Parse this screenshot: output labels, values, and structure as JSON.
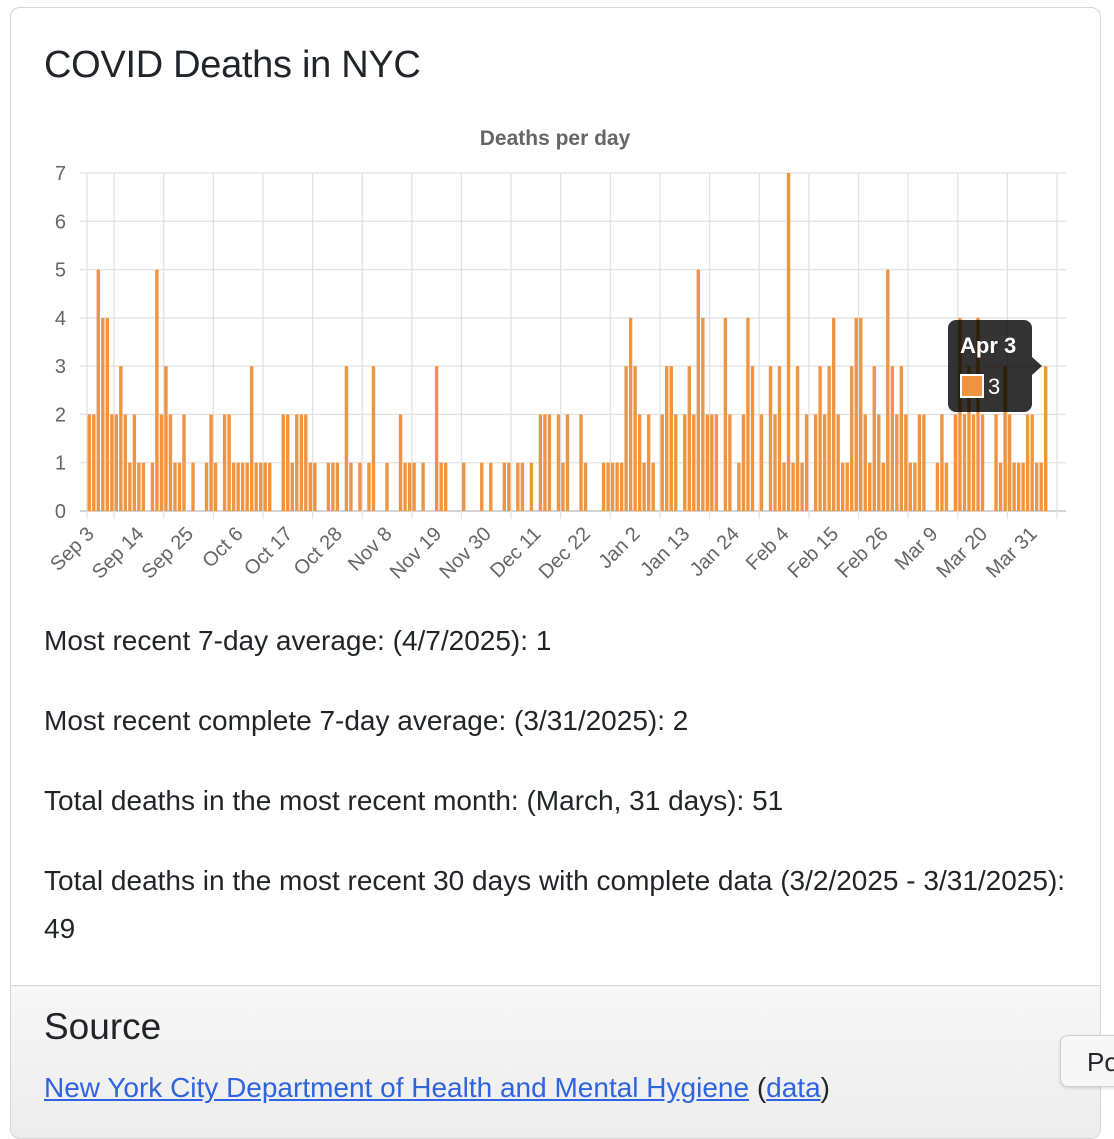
{
  "card": {
    "title": "COVID Deaths in NYC",
    "stats": [
      "Most recent 7-day average: (4/7/2025): 1",
      "Most recent complete 7-day average: (3/31/2025): 2",
      "Total deaths in the most recent month: (March, 31 days): 51",
      "Total deaths in the most recent 30 days with complete data (3/2/2025 - 3/31/2025): 49"
    ]
  },
  "source": {
    "heading": "Source",
    "link_label": "New York City Department of Health and Mental Hygiene",
    "open_paren": "(",
    "data_link_label": "data",
    "close_paren": ")"
  },
  "side_button": {
    "label": "Po"
  },
  "colors": {
    "bar": "#ef9440",
    "tooltip_bg": "#000000cc"
  },
  "chart_data": {
    "type": "bar",
    "title": "Deaths per day",
    "xlabel": "",
    "ylabel": "",
    "ylim": [
      0,
      7
    ],
    "yticks": [
      "0",
      "1",
      "2",
      "3",
      "4",
      "5",
      "6",
      "7"
    ],
    "grid": true,
    "legend": "none",
    "x_start": "Sep 3",
    "x_end": "Apr 7",
    "xtick_labels": [
      "Sep 3",
      "Sep 14",
      "Sep 25",
      "Oct 6",
      "Oct 17",
      "Oct 28",
      "Nov 8",
      "Nov 19",
      "Nov 30",
      "Dec 11",
      "Dec 22",
      "Jan 2",
      "Jan 13",
      "Jan 24",
      "Feb 4",
      "Feb 15",
      "Feb 26",
      "Mar 9",
      "Mar 20",
      "Mar 31"
    ],
    "xtick_every_days": 11,
    "values": [
      2,
      2,
      5,
      4,
      4,
      2,
      2,
      3,
      2,
      1,
      2,
      1,
      1,
      0,
      1,
      5,
      2,
      3,
      2,
      1,
      1,
      2,
      0,
      1,
      0,
      0,
      1,
      2,
      1,
      0,
      2,
      2,
      1,
      1,
      1,
      1,
      3,
      1,
      1,
      1,
      1,
      0,
      0,
      2,
      2,
      1,
      2,
      2,
      2,
      1,
      1,
      0,
      0,
      1,
      1,
      1,
      0,
      3,
      1,
      0,
      1,
      0,
      1,
      3,
      0,
      0,
      1,
      0,
      0,
      2,
      1,
      1,
      1,
      0,
      1,
      0,
      0,
      3,
      1,
      1,
      0,
      0,
      0,
      1,
      0,
      0,
      0,
      1,
      0,
      1,
      0,
      0,
      1,
      1,
      0,
      1,
      1,
      0,
      1,
      0,
      2,
      2,
      2,
      0,
      2,
      1,
      2,
      0,
      0,
      2,
      1,
      0,
      0,
      0,
      1,
      1,
      1,
      1,
      1,
      3,
      4,
      3,
      2,
      1,
      2,
      1,
      0,
      2,
      3,
      3,
      2,
      0,
      2,
      3,
      2,
      5,
      4,
      2,
      2,
      2,
      0,
      4,
      2,
      0,
      1,
      2,
      4,
      3,
      0,
      2,
      0,
      3,
      2,
      3,
      1,
      7,
      1,
      3,
      1,
      2,
      0,
      2,
      3,
      2,
      3,
      4,
      2,
      1,
      1,
      3,
      4,
      4,
      2,
      1,
      3,
      2,
      1,
      5,
      3,
      2,
      3,
      2,
      1,
      1,
      2,
      2,
      0,
      0,
      1,
      2,
      1,
      0,
      2,
      4,
      2,
      3,
      2,
      4,
      2,
      0,
      0,
      2,
      1,
      3,
      2,
      1,
      1,
      1,
      2,
      2,
      1,
      1,
      3,
      0,
      0,
      0,
      0
    ],
    "tooltip": {
      "label": "Apr 3",
      "value": "3",
      "index": 212
    }
  }
}
